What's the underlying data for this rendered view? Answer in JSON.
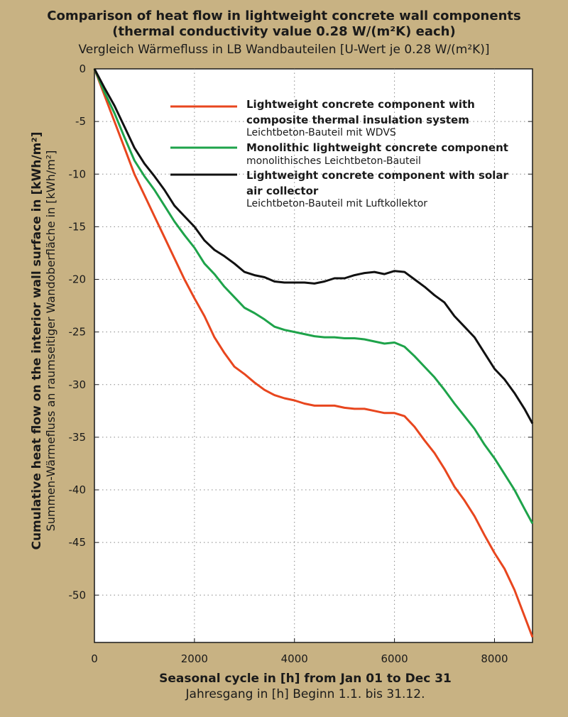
{
  "title": {
    "en_line1": "Comparison of heat flow in lightweight concrete wall components",
    "en_line2": "(thermal conductivity value 0.28 W/(m²K) each)",
    "de": "Vergleich Wärmefluss in LB Wandbauteilen [U-Wert je 0.28 W/(m²K)]"
  },
  "axes": {
    "ylabel_en": "Cumulative heat flow on the interior wall surface in [kWh/m²]",
    "ylabel_de": "Summen-Wärmefluss an raumseitiger Wandoberfläche in [kWh/m²]",
    "xlabel_en": "Seasonal cycle in [h] from Jan 01 to Dec 31",
    "xlabel_de": "Jahresgang in [h] Beginn 1.1. bis 31.12."
  },
  "chart_data": {
    "type": "line",
    "xlim": [
      0,
      8760
    ],
    "ylim": [
      -54.5,
      0
    ],
    "x_ticks": [
      0,
      2000,
      4000,
      6000,
      8000
    ],
    "y_ticks": [
      0,
      -5,
      -10,
      -15,
      -20,
      -25,
      -30,
      -35,
      -40,
      -45,
      -50
    ],
    "x_tick_labels": [
      "0",
      "2000",
      "4000",
      "6000",
      "8000"
    ],
    "y_tick_labels": [
      "0",
      "-5",
      "-10",
      "-15",
      "-20",
      "-25",
      "-30",
      "-35",
      "-40",
      "-45",
      "-50"
    ],
    "grid": true,
    "legend_position": "top-right",
    "series": [
      {
        "name": "Lightweight concrete component with composite thermal insulation system",
        "name_line1": "Lightweight concrete component with",
        "name_line2": "composite thermal insulation system",
        "name_de": "Leichtbeton-Bauteil mit WDVS",
        "color": "#e8461e",
        "x": [
          0,
          200,
          400,
          600,
          800,
          1000,
          1200,
          1400,
          1600,
          1800,
          2000,
          2200,
          2400,
          2600,
          2800,
          3000,
          3200,
          3400,
          3600,
          3800,
          4000,
          4200,
          4400,
          4600,
          4800,
          5000,
          5200,
          5400,
          5600,
          5800,
          6000,
          6200,
          6400,
          6600,
          6800,
          7000,
          7200,
          7400,
          7600,
          7800,
          8000,
          8200,
          8400,
          8600,
          8760
        ],
        "values": [
          0,
          -2.5,
          -5,
          -7.5,
          -10,
          -12,
          -14,
          -16,
          -18,
          -20,
          -21.8,
          -23.5,
          -25.5,
          -27,
          -28.3,
          -29,
          -29.8,
          -30.5,
          -31,
          -31.3,
          -31.5,
          -31.8,
          -32,
          -32,
          -32,
          -32.2,
          -32.3,
          -32.3,
          -32.5,
          -32.7,
          -32.7,
          -33,
          -34,
          -35.3,
          -36.5,
          -38,
          -39.7,
          -41,
          -42.5,
          -44.3,
          -46,
          -47.5,
          -49.5,
          -52,
          -54
        ]
      },
      {
        "name": "Monolithic lightweight concrete component",
        "name_line1": "Monolithic lightweight concrete component",
        "name_line2": "",
        "name_de": "monolithisches Leichtbeton-Bauteil",
        "color": "#1ea34a",
        "x": [
          0,
          200,
          400,
          600,
          800,
          1000,
          1200,
          1400,
          1600,
          1800,
          2000,
          2200,
          2400,
          2600,
          2800,
          3000,
          3200,
          3400,
          3600,
          3800,
          4000,
          4200,
          4400,
          4600,
          4800,
          5000,
          5200,
          5400,
          5600,
          5800,
          6000,
          6200,
          6400,
          6600,
          6800,
          7000,
          7200,
          7400,
          7600,
          7800,
          8000,
          8200,
          8400,
          8600,
          8760
        ],
        "values": [
          0,
          -2.2,
          -4.2,
          -6.5,
          -8.7,
          -10.2,
          -11.5,
          -13,
          -14.5,
          -15.8,
          -17,
          -18.5,
          -19.5,
          -20.7,
          -21.7,
          -22.7,
          -23.2,
          -23.8,
          -24.5,
          -24.8,
          -25,
          -25.2,
          -25.4,
          -25.5,
          -25.5,
          -25.6,
          -25.6,
          -25.7,
          -25.9,
          -26.1,
          -26,
          -26.4,
          -27.3,
          -28.3,
          -29.3,
          -30.5,
          -31.8,
          -33,
          -34.2,
          -35.7,
          -37,
          -38.5,
          -40,
          -41.8,
          -43.2
        ]
      },
      {
        "name": "Lightweight concrete component with solar air collector",
        "name_line1": "Lightweight concrete component with solar",
        "name_line2": "air collector",
        "name_de": "Leichtbeton-Bauteil mit Luftkollektor",
        "color": "#111111",
        "x": [
          0,
          200,
          400,
          600,
          800,
          1000,
          1200,
          1400,
          1600,
          1800,
          2000,
          2200,
          2400,
          2600,
          2800,
          3000,
          3200,
          3400,
          3600,
          3800,
          4000,
          4200,
          4400,
          4600,
          4800,
          5000,
          5200,
          5400,
          5600,
          5800,
          6000,
          6200,
          6400,
          6600,
          6800,
          7000,
          7200,
          7400,
          7600,
          7800,
          8000,
          8200,
          8400,
          8600,
          8760
        ],
        "values": [
          0,
          -1.8,
          -3.5,
          -5.5,
          -7.5,
          -9,
          -10.2,
          -11.5,
          -13,
          -14,
          -15,
          -16.3,
          -17.2,
          -17.8,
          -18.5,
          -19.3,
          -19.6,
          -19.8,
          -20.2,
          -20.3,
          -20.3,
          -20.3,
          -20.4,
          -20.2,
          -19.9,
          -19.9,
          -19.6,
          -19.4,
          -19.3,
          -19.5,
          -19.2,
          -19.3,
          -20,
          -20.7,
          -21.5,
          -22.2,
          -23.5,
          -24.5,
          -25.5,
          -27,
          -28.5,
          -29.5,
          -30.8,
          -32.3,
          -33.7
        ]
      }
    ]
  }
}
